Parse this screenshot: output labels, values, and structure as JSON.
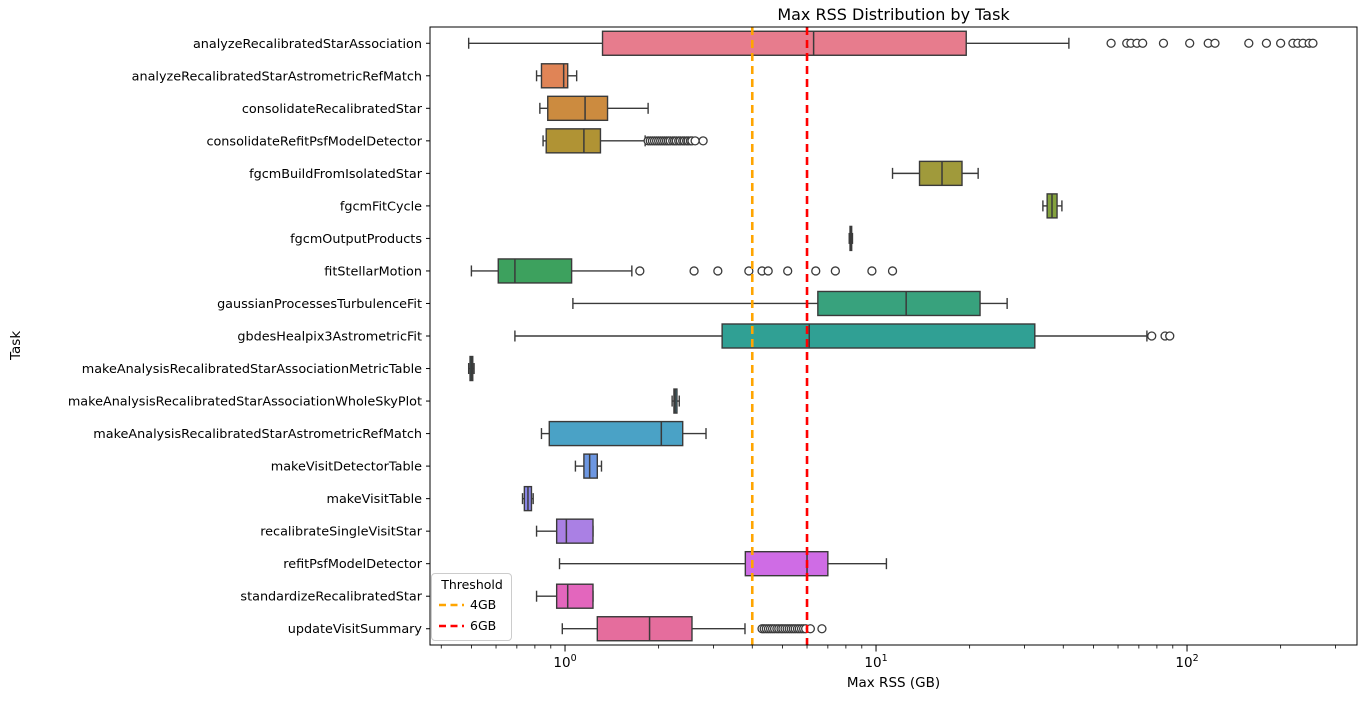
{
  "chart_data": {
    "type": "box",
    "title": "Max RSS Distribution by Task",
    "xlabel": "Max RSS (GB)",
    "ylabel": "Task",
    "x_scale": "log",
    "xlim": [
      0.368,
      352
    ],
    "grid": false,
    "x_major_ticks": [
      {
        "value": 1,
        "base": "10",
        "exp": "0"
      },
      {
        "value": 10,
        "base": "10",
        "exp": "1"
      },
      {
        "value": 100,
        "base": "10",
        "exp": "2"
      }
    ],
    "legend": {
      "title": "Threshold",
      "position": "lower left"
    },
    "thresholds": [
      {
        "label": "4GB",
        "value": 4,
        "color": "#FFA500"
      },
      {
        "label": "6GB",
        "value": 6,
        "color": "#FF0000"
      }
    ],
    "boxes": [
      {
        "task": "analyzeRecalibratedStarAssociation",
        "color": "#e77c8d",
        "whislo": 0.49,
        "q1": 1.32,
        "med": 6.3,
        "q3": 19.5,
        "whishi": 41.7,
        "outliers": [
          57,
          64,
          66,
          69,
          72,
          84,
          102,
          117,
          123,
          158,
          180,
          200,
          219,
          227,
          236,
          247,
          254
        ]
      },
      {
        "task": "analyzeRecalibratedStarAstrometricRefMatch",
        "color": "#e08456",
        "whislo": 0.81,
        "q1": 0.84,
        "med": 0.99,
        "q3": 1.02,
        "whishi": 1.09,
        "outliers": []
      },
      {
        "task": "consolidateRecalibratedStar",
        "color": "#cc8b3f",
        "whislo": 0.83,
        "q1": 0.88,
        "med": 1.16,
        "q3": 1.37,
        "whishi": 1.85,
        "outliers": []
      },
      {
        "task": "consolidateRefitPsfModelDetector",
        "color": "#b09334",
        "whislo": 0.85,
        "q1": 0.87,
        "med": 1.15,
        "q3": 1.3,
        "whishi": 1.81,
        "outliers": [
          1.85,
          1.88,
          1.91,
          1.94,
          1.97,
          2.0,
          2.03,
          2.06,
          2.09,
          2.12,
          2.15,
          2.18,
          2.22,
          2.25,
          2.28,
          2.32,
          2.35,
          2.39,
          2.42,
          2.46,
          2.49,
          2.53,
          2.56,
          2.62,
          2.78
        ]
      },
      {
        "task": "fgcmBuildFromIsolatedStar",
        "color": "#a09a3b",
        "whislo": 11.3,
        "q1": 13.8,
        "med": 16.3,
        "q3": 18.9,
        "whishi": 21.3,
        "outliers": []
      },
      {
        "task": "fgcmFitCycle",
        "color": "#84a23d",
        "whislo": 34.4,
        "q1": 35.5,
        "med": 36.8,
        "q3": 38.2,
        "whishi": 39.6,
        "outliers": []
      },
      {
        "task": "fgcmOutputProducts",
        "color": "#52a958",
        "whislo": 8.2,
        "q1": 8.25,
        "med": 8.3,
        "q3": 8.35,
        "whishi": 8.4,
        "outliers": []
      },
      {
        "task": "fitStellarMotion",
        "color": "#3da15e",
        "whislo": 0.5,
        "q1": 0.61,
        "med": 0.69,
        "q3": 1.05,
        "whishi": 1.64,
        "outliers": [
          1.74,
          2.6,
          3.1,
          3.9,
          4.3,
          4.5,
          5.2,
          6.4,
          7.4,
          9.7,
          11.3
        ]
      },
      {
        "task": "gaussianProcessesTurbulenceFit",
        "color": "#38a27d",
        "whislo": 1.06,
        "q1": 6.5,
        "med": 12.5,
        "q3": 21.6,
        "whishi": 26.4,
        "outliers": []
      },
      {
        "task": "gbdesHealpix3AstrometricFit",
        "color": "#30a094",
        "whislo": 0.69,
        "q1": 3.2,
        "med": 6.1,
        "q3": 32.4,
        "whishi": 74.3,
        "outliers": [
          77,
          85,
          88
        ]
      },
      {
        "task": "makeAnalysisRecalibratedStarAssociationMetricTable",
        "color": "#32a0a8",
        "whislo": 0.49,
        "q1": 0.495,
        "med": 0.5,
        "q3": 0.505,
        "whishi": 0.51,
        "outliers": []
      },
      {
        "task": "makeAnalysisRecalibratedStarAssociationWholeSkyPlot",
        "color": "#3fa1bb",
        "whislo": 2.21,
        "q1": 2.24,
        "med": 2.26,
        "q3": 2.29,
        "whishi": 2.33,
        "outliers": []
      },
      {
        "task": "makeAnalysisRecalibratedStarAstrometricRefMatch",
        "color": "#4aa2c6",
        "whislo": 0.84,
        "q1": 0.89,
        "med": 2.04,
        "q3": 2.39,
        "whishi": 2.84,
        "outliers": []
      },
      {
        "task": "makeVisitDetectorTable",
        "color": "#6d97e2",
        "whislo": 1.08,
        "q1": 1.15,
        "med": 1.2,
        "q3": 1.27,
        "whishi": 1.31,
        "outliers": []
      },
      {
        "task": "makeVisitTable",
        "color": "#8b88ea",
        "whislo": 0.73,
        "q1": 0.74,
        "med": 0.76,
        "q3": 0.78,
        "whishi": 0.79,
        "outliers": []
      },
      {
        "task": "recalibrateSingleVisitStar",
        "color": "#aa80e4",
        "whislo": 0.81,
        "q1": 0.94,
        "med": 1.01,
        "q3": 1.23,
        "whishi": 1.23,
        "outliers": []
      },
      {
        "task": "refitPsfModelDetector",
        "color": "#cf6ce5",
        "whislo": 0.96,
        "q1": 3.8,
        "med": 6.0,
        "q3": 7.0,
        "whishi": 10.8,
        "outliers": []
      },
      {
        "task": "standardizeRecalibratedStar",
        "color": "#e366bd",
        "whislo": 0.81,
        "q1": 0.94,
        "med": 1.02,
        "q3": 1.23,
        "whishi": 1.23,
        "outliers": []
      },
      {
        "task": "updateVisitSummary",
        "color": "#e56d9d",
        "whislo": 0.98,
        "q1": 1.27,
        "med": 1.87,
        "q3": 2.56,
        "whishi": 3.79,
        "outliers": [
          4.3,
          4.37,
          4.44,
          4.51,
          4.58,
          4.65,
          4.72,
          4.8,
          4.87,
          4.95,
          5.02,
          5.1,
          5.18,
          5.26,
          5.34,
          5.42,
          5.5,
          5.59,
          5.67,
          5.76,
          5.85,
          5.94,
          6.15,
          6.7
        ]
      }
    ]
  }
}
